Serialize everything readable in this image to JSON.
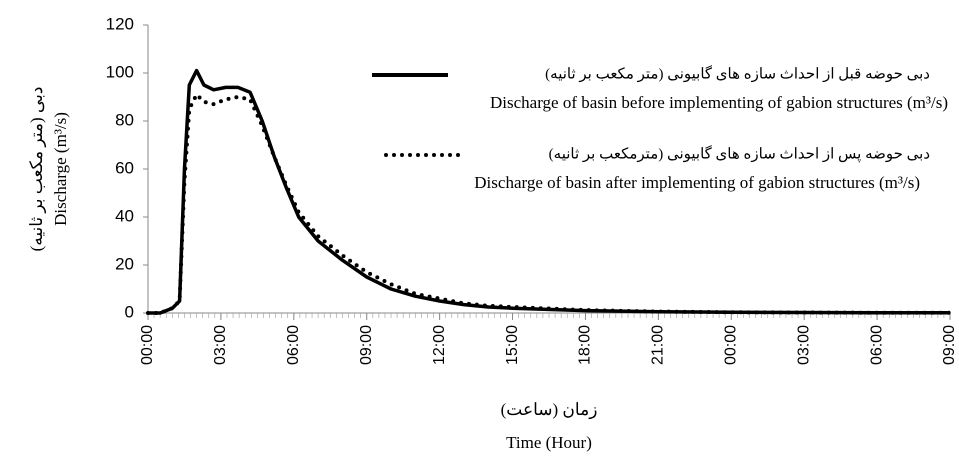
{
  "chart_data": {
    "type": "line",
    "y_label_fa": "دبی (متر مکعب بر ثانیه)",
    "y_label": "Discharge (m³/s)",
    "x_label_fa": "زمان (ساعت)",
    "x_label": "Time (Hour)",
    "xlim": [
      0,
      33
    ],
    "ylim": [
      0,
      120
    ],
    "yticks": [
      0,
      20,
      40,
      60,
      80,
      100,
      120
    ],
    "xticks": [
      {
        "value": 0,
        "label": "00:00"
      },
      {
        "value": 3,
        "label": "03:00"
      },
      {
        "value": 6,
        "label": "06:00"
      },
      {
        "value": 9,
        "label": "09:00"
      },
      {
        "value": 12,
        "label": "12:00"
      },
      {
        "value": 15,
        "label": "15:00"
      },
      {
        "value": 18,
        "label": "18:00"
      },
      {
        "value": 21,
        "label": "21:00"
      },
      {
        "value": 24,
        "label": "00:00"
      },
      {
        "value": 27,
        "label": "03:00"
      },
      {
        "value": 30,
        "label": "06:00"
      },
      {
        "value": 33,
        "label": "09:00"
      }
    ],
    "x": [
      0,
      0.5,
      1,
      1.3,
      1.5,
      1.7,
      2,
      2.3,
      2.7,
      3.2,
      3.7,
      4.2,
      4.7,
      5.2,
      5.7,
      6.2,
      7,
      8,
      9,
      10,
      11,
      12,
      13,
      14,
      15,
      18,
      21,
      24,
      27,
      30,
      33
    ],
    "series": [
      {
        "name": "Discharge of basin before implementing of gabion structures (m³/s)",
        "legend_fa": "دبی حوضه قبل از احداث سازه های گابیونی (متر مکعب بر ثانیه)",
        "color": "#000000",
        "style": "solid",
        "values": [
          0,
          0,
          2,
          5,
          60,
          95,
          101,
          95,
          93,
          94,
          94,
          92,
          80,
          65,
          52,
          40,
          30,
          22,
          15,
          10,
          7,
          5,
          3.5,
          2.5,
          2,
          1,
          0.5,
          0.3,
          0.2,
          0.1,
          0.1
        ]
      },
      {
        "name": "Discharge of basin after implementing of gabion structures (m³/s)",
        "legend_fa": "دبی حوضه پس از احداث سازه های گابیونی (مترمکعب بر ثانیه)",
        "color": "#000000",
        "style": "dotted",
        "values": [
          0,
          0,
          2,
          5,
          55,
          85,
          91,
          88,
          87,
          89,
          90,
          89,
          78,
          65,
          53,
          42,
          32,
          24,
          17,
          12,
          8,
          6,
          4,
          3,
          2.5,
          1.2,
          0.6,
          0.3,
          0.2,
          0.1,
          0.1
        ]
      }
    ]
  }
}
